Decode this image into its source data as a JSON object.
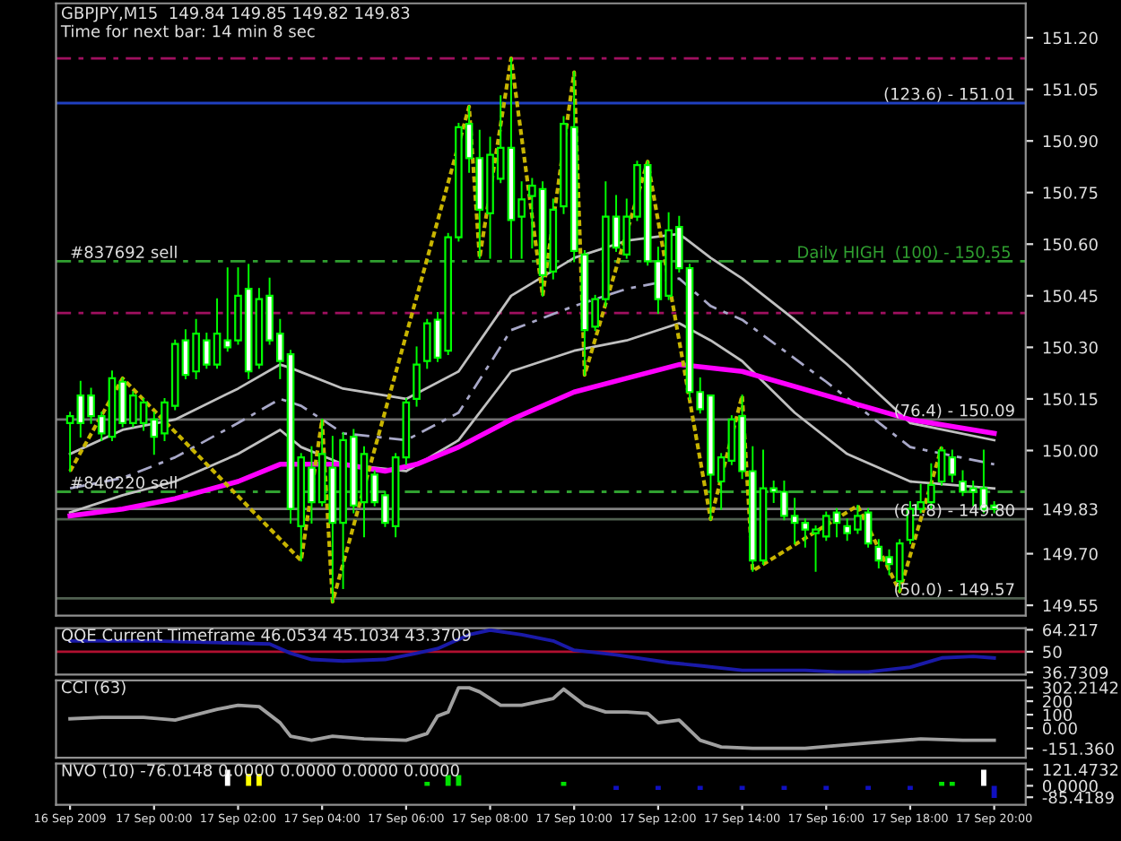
{
  "chart_data": [
    {
      "type": "candlestick",
      "title": "GBPJPY,M15  149.84 149.85 149.82 149.83",
      "subtitle": "Time for next bar: 14 min 8 sec",
      "tick_labels": "y",
      "color": "#00ff00",
      "x": [
        "2009-09-16T22:00",
        "2009-09-16T22:15",
        "2009-09-16T22:30",
        "2009-09-16T22:45",
        "2009-09-16T23:00",
        "2009-09-16T23:15",
        "2009-09-16T23:30",
        "2009-09-16T23:45",
        "2009-09-17T00:00",
        "2009-09-17T00:15",
        "2009-09-17T00:30",
        "2009-09-17T00:45",
        "2009-09-17T01:00",
        "2009-09-17T01:15",
        "2009-09-17T01:30",
        "2009-09-17T01:45",
        "2009-09-17T02:00",
        "2009-09-17T02:15",
        "2009-09-17T02:30",
        "2009-09-17T02:45",
        "2009-09-17T03:00",
        "2009-09-17T03:15",
        "2009-09-17T03:30",
        "2009-09-17T03:45",
        "2009-09-17T04:00",
        "2009-09-17T04:15",
        "2009-09-17T04:30",
        "2009-09-17T04:45",
        "2009-09-17T05:00",
        "2009-09-17T05:15",
        "2009-09-17T05:30",
        "2009-09-17T05:45",
        "2009-09-17T06:00",
        "2009-09-17T06:15",
        "2009-09-17T06:30",
        "2009-09-17T06:45",
        "2009-09-17T07:00",
        "2009-09-17T07:15",
        "2009-09-17T07:30",
        "2009-09-17T07:45",
        "2009-09-17T08:00",
        "2009-09-17T08:15",
        "2009-09-17T08:30",
        "2009-09-17T08:45",
        "2009-09-17T09:00",
        "2009-09-17T09:15",
        "2009-09-17T09:30",
        "2009-09-17T09:45",
        "2009-09-17T10:00",
        "2009-09-17T10:15",
        "2009-09-17T10:30",
        "2009-09-17T10:45",
        "2009-09-17T11:00",
        "2009-09-17T11:15",
        "2009-09-17T11:30",
        "2009-09-17T11:45",
        "2009-09-17T12:00",
        "2009-09-17T12:15",
        "2009-09-17T12:30",
        "2009-09-17T12:45",
        "2009-09-17T13:00",
        "2009-09-17T13:15",
        "2009-09-17T13:30",
        "2009-09-17T13:45",
        "2009-09-17T14:00",
        "2009-09-17T14:15",
        "2009-09-17T14:30",
        "2009-09-17T14:45",
        "2009-09-17T15:00",
        "2009-09-17T15:15",
        "2009-09-17T15:30",
        "2009-09-17T15:45",
        "2009-09-17T16:00",
        "2009-09-17T16:15",
        "2009-09-17T16:30",
        "2009-09-17T16:45",
        "2009-09-17T17:00",
        "2009-09-17T17:15",
        "2009-09-17T17:30",
        "2009-09-17T17:45",
        "2009-09-17T18:00",
        "2009-09-17T18:15",
        "2009-09-17T18:30",
        "2009-09-17T18:45",
        "2009-09-17T19:00",
        "2009-09-17T19:15",
        "2009-09-17T19:30",
        "2009-09-17T19:45",
        "2009-09-17T20:00"
      ],
      "ohlc": [
        [
          150.08,
          150.11,
          149.94,
          150.1
        ],
        [
          150.16,
          150.2,
          150.04,
          150.08
        ],
        [
          150.16,
          150.18,
          150.08,
          150.1
        ],
        [
          150.1,
          150.11,
          150.03,
          150.05
        ],
        [
          150.04,
          150.23,
          150.03,
          150.21
        ],
        [
          150.2,
          150.21,
          150.07,
          150.08
        ],
        [
          150.08,
          150.17,
          150.07,
          150.16
        ],
        [
          150.08,
          150.15,
          150.06,
          150.14
        ],
        [
          150.09,
          150.11,
          149.99,
          150.04
        ],
        [
          150.05,
          150.15,
          150.03,
          150.14
        ],
        [
          150.13,
          150.32,
          150.12,
          150.31
        ],
        [
          150.32,
          150.35,
          150.21,
          150.22
        ],
        [
          150.23,
          150.38,
          150.21,
          150.34
        ],
        [
          150.32,
          150.34,
          150.24,
          150.25
        ],
        [
          150.25,
          150.44,
          150.24,
          150.34
        ],
        [
          150.32,
          150.53,
          150.29,
          150.3
        ],
        [
          150.32,
          150.53,
          150.31,
          150.45
        ],
        [
          150.47,
          150.54,
          150.21,
          150.23
        ],
        [
          150.25,
          150.47,
          150.24,
          150.44
        ],
        [
          150.45,
          150.5,
          150.31,
          150.32
        ],
        [
          150.34,
          150.38,
          150.21,
          150.26
        ],
        [
          150.28,
          150.29,
          149.79,
          149.83
        ],
        [
          149.78,
          149.99,
          149.68,
          149.98
        ],
        [
          149.95,
          150.01,
          149.79,
          149.85
        ],
        [
          149.85,
          150.09,
          149.84,
          149.99
        ],
        [
          149.95,
          150.04,
          149.56,
          149.79
        ],
        [
          149.79,
          150.05,
          149.6,
          150.03
        ],
        [
          150.04,
          150.06,
          149.82,
          149.84
        ],
        [
          149.85,
          150.01,
          149.75,
          149.99
        ],
        [
          149.93,
          149.94,
          149.84,
          149.85
        ],
        [
          149.87,
          149.88,
          149.78,
          149.79
        ],
        [
          149.78,
          149.99,
          149.75,
          149.98
        ],
        [
          149.98,
          150.15,
          149.96,
          150.14
        ],
        [
          150.15,
          150.3,
          150.13,
          150.25
        ],
        [
          150.26,
          150.38,
          150.24,
          150.37
        ],
        [
          150.38,
          150.4,
          150.26,
          150.27
        ],
        [
          150.29,
          150.63,
          150.28,
          150.62
        ],
        [
          150.62,
          150.95,
          150.61,
          150.94
        ],
        [
          150.95,
          151.0,
          150.81,
          150.85
        ],
        [
          150.85,
          150.93,
          150.56,
          150.7
        ],
        [
          150.69,
          150.91,
          150.56,
          150.86
        ],
        [
          150.79,
          151.03,
          150.78,
          150.88
        ],
        [
          150.88,
          151.14,
          150.56,
          150.67
        ],
        [
          150.68,
          150.78,
          150.56,
          150.73
        ],
        [
          150.74,
          150.79,
          150.59,
          150.77
        ],
        [
          150.76,
          150.78,
          150.45,
          150.51
        ],
        [
          150.52,
          150.73,
          150.5,
          150.7
        ],
        [
          150.71,
          150.97,
          150.69,
          150.95
        ],
        [
          150.94,
          151.1,
          150.55,
          150.58
        ],
        [
          150.57,
          150.58,
          150.22,
          150.35
        ],
        [
          150.36,
          150.45,
          150.35,
          150.44
        ],
        [
          150.44,
          150.78,
          150.42,
          150.68
        ],
        [
          150.68,
          150.74,
          150.58,
          150.59
        ],
        [
          150.57,
          150.73,
          150.56,
          150.68
        ],
        [
          150.68,
          150.84,
          150.67,
          150.83
        ],
        [
          150.83,
          150.84,
          150.54,
          150.55
        ],
        [
          150.55,
          150.59,
          150.4,
          150.44
        ],
        [
          150.45,
          150.69,
          150.44,
          150.64
        ],
        [
          150.65,
          150.68,
          150.52,
          150.53
        ],
        [
          150.53,
          150.54,
          150.15,
          150.17
        ],
        [
          150.17,
          150.21,
          150.11,
          150.12
        ],
        [
          150.16,
          150.16,
          149.8,
          149.93
        ],
        [
          149.91,
          149.99,
          149.83,
          149.98
        ],
        [
          149.97,
          150.1,
          149.96,
          150.09
        ],
        [
          150.1,
          150.16,
          149.92,
          149.94
        ],
        [
          149.94,
          150.01,
          149.65,
          149.68
        ],
        [
          149.68,
          150.0,
          149.67,
          149.89
        ],
        [
          149.89,
          149.91,
          149.85,
          149.88
        ],
        [
          149.88,
          149.91,
          149.8,
          149.81
        ],
        [
          149.81,
          149.86,
          149.73,
          149.79
        ],
        [
          149.79,
          149.8,
          149.72,
          149.77
        ],
        [
          149.76,
          149.78,
          149.65,
          149.77
        ],
        [
          149.75,
          149.82,
          149.74,
          149.81
        ],
        [
          149.82,
          149.83,
          149.75,
          149.79
        ],
        [
          149.78,
          149.8,
          149.74,
          149.76
        ],
        [
          149.77,
          149.84,
          149.76,
          149.81
        ],
        [
          149.82,
          149.83,
          149.72,
          149.73
        ],
        [
          149.72,
          149.74,
          149.66,
          149.68
        ],
        [
          149.69,
          149.71,
          149.64,
          149.67
        ],
        [
          149.62,
          149.74,
          149.59,
          149.73
        ],
        [
          149.74,
          149.85,
          149.73,
          149.83
        ],
        [
          149.83,
          149.9,
          149.82,
          149.85
        ],
        [
          149.85,
          149.96,
          149.83,
          149.9
        ],
        [
          149.91,
          150.01,
          149.9,
          150.0
        ],
        [
          149.98,
          150.0,
          149.91,
          149.93
        ],
        [
          149.91,
          149.94,
          149.87,
          149.88
        ],
        [
          149.89,
          149.91,
          149.84,
          149.88
        ],
        [
          149.89,
          150.0,
          149.82,
          149.83
        ],
        [
          149.84,
          149.85,
          149.82,
          149.83
        ]
      ],
      "series": [
        {
          "type": "line",
          "color": "#c0c0c0",
          "line_style": "solid",
          "x": [
            "2009-09-16T22:00",
            "2009-09-16T23:15",
            "2009-09-17T00:30",
            "2009-09-17T02:00",
            "2009-09-17T03:00",
            "2009-09-17T03:15",
            "2009-09-17T04:30",
            "2009-09-17T06:00",
            "2009-09-17T07:15",
            "2009-09-17T08:30",
            "2009-09-17T10:00",
            "2009-09-17T11:15",
            "2009-09-17T12:30",
            "2009-09-17T13:15",
            "2009-09-17T14:00",
            "2009-09-17T15:15",
            "2009-09-17T16:30",
            "2009-09-17T18:00",
            "2009-09-17T20:00"
          ],
          "values": [
            149.99,
            150.06,
            150.09,
            150.18,
            150.25,
            150.24,
            150.18,
            150.15,
            150.23,
            150.45,
            150.56,
            150.61,
            150.63,
            150.56,
            150.5,
            150.38,
            150.25,
            150.08,
            150.03
          ]
        },
        {
          "type": "line",
          "color": "#a8a8c8",
          "line_style": "dashed",
          "x": [
            "2009-09-16T22:00",
            "2009-09-16T23:15",
            "2009-09-17T00:30",
            "2009-09-17T02:00",
            "2009-09-17T03:00",
            "2009-09-17T03:30",
            "2009-09-17T04:30",
            "2009-09-17T06:00",
            "2009-09-17T07:15",
            "2009-09-17T08:30",
            "2009-09-17T10:00",
            "2009-09-17T11:15",
            "2009-09-17T12:30",
            "2009-09-17T13:15",
            "2009-09-17T14:00",
            "2009-09-17T16:00",
            "2009-09-17T18:00",
            "2009-09-17T20:00"
          ],
          "values": [
            149.89,
            149.92,
            149.98,
            150.08,
            150.15,
            150.13,
            150.05,
            150.03,
            150.11,
            150.35,
            150.42,
            150.47,
            150.5,
            150.42,
            150.38,
            150.2,
            150.01,
            149.96
          ]
        },
        {
          "type": "line",
          "color": "#c0c0c0",
          "line_style": "solid",
          "x": [
            "2009-09-16T22:00",
            "2009-09-16T23:15",
            "2009-09-17T00:30",
            "2009-09-17T02:00",
            "2009-09-17T03:00",
            "2009-09-17T03:30",
            "2009-09-17T04:30",
            "2009-09-17T06:00",
            "2009-09-17T07:15",
            "2009-09-17T08:30",
            "2009-09-17T10:00",
            "2009-09-17T11:15",
            "2009-09-17T12:30",
            "2009-09-17T13:15",
            "2009-09-17T14:00",
            "2009-09-17T15:15",
            "2009-09-17T16:30",
            "2009-09-17T18:00",
            "2009-09-17T20:00"
          ],
          "values": [
            149.82,
            149.87,
            149.91,
            149.99,
            150.06,
            150.01,
            149.96,
            149.94,
            150.03,
            150.23,
            150.29,
            150.32,
            150.37,
            150.32,
            150.26,
            150.11,
            149.99,
            149.91,
            149.89
          ]
        },
        {
          "type": "line",
          "color": "#ff00ff",
          "line_style": "solid",
          "x": [
            "2009-09-16T22:00",
            "2009-09-16T23:15",
            "2009-09-17T00:30",
            "2009-09-17T02:00",
            "2009-09-17T03:00",
            "2009-09-17T04:30",
            "2009-09-17T05:30",
            "2009-09-17T06:15",
            "2009-09-17T07:15",
            "2009-09-17T08:30",
            "2009-09-17T10:00",
            "2009-09-17T11:15",
            "2009-09-17T12:30",
            "2009-09-17T14:00",
            "2009-09-17T16:00",
            "2009-09-17T18:00",
            "2009-09-17T20:00"
          ],
          "values": [
            149.81,
            149.83,
            149.86,
            149.91,
            149.96,
            149.96,
            149.94,
            149.96,
            150.01,
            150.09,
            150.17,
            150.21,
            150.25,
            150.23,
            150.16,
            150.09,
            150.05
          ]
        },
        {
          "type": "line",
          "color": "#c8b400",
          "line_style": "dotted",
          "x": [
            "2009-09-16T22:00",
            "2009-09-16T23:15",
            "2009-09-17T03:30",
            "2009-09-17T04:00",
            "2009-09-17T04:15",
            "2009-09-17T07:30",
            "2009-09-17T07:45",
            "2009-09-17T08:30",
            "2009-09-17T09:15",
            "2009-09-17T10:00",
            "2009-09-17T10:15",
            "2009-09-17T11:45",
            "2009-09-17T13:15",
            "2009-09-17T14:00",
            "2009-09-17T14:15",
            "2009-09-17T16:45",
            "2009-09-17T17:45",
            "2009-09-17T18:45"
          ],
          "values": [
            149.94,
            150.21,
            149.68,
            150.09,
            149.56,
            151.0,
            150.56,
            151.14,
            150.45,
            151.1,
            150.22,
            150.84,
            149.8,
            150.16,
            149.65,
            149.84,
            149.59,
            150.01
          ]
        }
      ],
      "ref_lines": [
        {
          "axis": "y",
          "value": 151.14,
          "color": "#a01060",
          "line_style": "dashed"
        },
        {
          "axis": "y",
          "value": 151.01,
          "color": "#2040c0",
          "line_style": "solid"
        },
        {
          "axis": "y",
          "value": 150.55,
          "color": "#30a030",
          "line_style": "dashed",
          "label": "Daily HIGH  (100) - 150.55"
        },
        {
          "axis": "y",
          "value": 150.4,
          "color": "#a01060",
          "line_style": "dashed"
        },
        {
          "axis": "y",
          "value": 150.09,
          "color": "#707070",
          "line_style": "solid"
        },
        {
          "axis": "y",
          "value": 149.88,
          "color": "#30a030",
          "line_style": "dashed"
        },
        {
          "axis": "y",
          "value": 149.83,
          "color": "#808080",
          "line_style": "solid"
        },
        {
          "axis": "y",
          "value": 149.8,
          "color": "#506050",
          "line_style": "solid"
        },
        {
          "axis": "y",
          "value": 149.57,
          "color": "#506050",
          "line_style": "solid"
        }
      ],
      "annotations": [
        {
          "text": "#837692 sell",
          "x": "2009-09-16T22:00",
          "y": 150.55
        },
        {
          "text": "#840220 sell",
          "x": "2009-09-16T22:00",
          "y": 149.88
        },
        {
          "text": "(123.6) - 151.01",
          "x": "2009-09-17T20:30",
          "y": 151.01
        },
        {
          "text": "(76.4) - 150.09",
          "x": "2009-09-17T20:30",
          "y": 150.09
        },
        {
          "text": "(61.8) - 149.80",
          "x": "2009-09-17T20:30",
          "y": 149.8
        },
        {
          "text": "(50.0) - 149.57",
          "x": "2009-09-17T20:30",
          "y": 149.57
        }
      ],
      "xlim": [
        "2009-09-16T21:40",
        "2009-09-17T20:45"
      ],
      "ylim": [
        149.52,
        151.3
      ],
      "yticks": [
        {
          "value": 151.2,
          "label": "151.20"
        },
        151.05,
        {
          "value": 150.9,
          "label": "150.90"
        },
        150.75,
        {
          "value": 150.6,
          "label": "150.60"
        },
        150.45,
        {
          "value": 150.3,
          "label": "150.30"
        },
        150.15,
        {
          "value": 150.0,
          "label": "150.00"
        },
        {
          "value": 149.83,
          "label": "149.83"
        },
        {
          "value": 149.7,
          "label": "149.70"
        },
        149.55
      ]
    },
    {
      "type": "line",
      "title": "QQE Current Timeframe 46.0534 45.1034 43.3709",
      "tick_labels": "y",
      "color": "#1a1aa8",
      "x": [
        "2009-09-16T22:00",
        "2009-09-17T00:00",
        "2009-09-17T02:45",
        "2009-09-17T03:15",
        "2009-09-17T03:45",
        "2009-09-17T04:30",
        "2009-09-17T05:30",
        "2009-09-17T06:15",
        "2009-09-17T06:45",
        "2009-09-17T07:30",
        "2009-09-17T08:00",
        "2009-09-17T08:45",
        "2009-09-17T09:30",
        "2009-09-17T10:00",
        "2009-09-17T11:00",
        "2009-09-17T12:15",
        "2009-09-17T13:00",
        "2009-09-17T14:00",
        "2009-09-17T14:45",
        "2009-09-17T15:30",
        "2009-09-17T16:15",
        "2009-09-17T17:00",
        "2009-09-17T18:00",
        "2009-09-17T18:45",
        "2009-09-17T19:30",
        "2009-09-17T20:00"
      ],
      "values": [
        57,
        57,
        55,
        49,
        45,
        44,
        45,
        49,
        52,
        61,
        64,
        61,
        57,
        51,
        48,
        43,
        41,
        38,
        38,
        38,
        37,
        37,
        40,
        46,
        47,
        46
      ],
      "ref_lines": [
        {
          "axis": "y",
          "value": 50,
          "color": "#b01030",
          "line_style": "solid"
        }
      ],
      "xlim": [
        "2009-09-16T21:40",
        "2009-09-17T20:45"
      ],
      "ylim": [
        35.3,
        65.2
      ],
      "yticks": [
        64.217,
        50,
        36.7309
      ]
    },
    {
      "type": "line",
      "title": "CCI (63)",
      "tick_labels": "y",
      "color": "#a0a0a0",
      "x": [
        "2009-09-16T22:00",
        "2009-09-16T22:45",
        "2009-09-16T23:45",
        "2009-09-17T00:30",
        "2009-09-17T01:30",
        "2009-09-17T02:00",
        "2009-09-17T02:30",
        "2009-09-17T03:00",
        "2009-09-17T03:15",
        "2009-09-17T03:45",
        "2009-09-17T04:15",
        "2009-09-17T05:00",
        "2009-09-17T06:00",
        "2009-09-17T06:30",
        "2009-09-17T06:45",
        "2009-09-17T07:00",
        "2009-09-17T07:15",
        "2009-09-17T07:30",
        "2009-09-17T07:45",
        "2009-09-17T08:15",
        "2009-09-17T08:45",
        "2009-09-17T09:30",
        "2009-09-17T09:45",
        "2009-09-17T10:15",
        "2009-09-17T10:45",
        "2009-09-17T11:15",
        "2009-09-17T11:45",
        "2009-09-17T12:00",
        "2009-09-17T12:30",
        "2009-09-17T13:00",
        "2009-09-17T13:30",
        "2009-09-17T14:15",
        "2009-09-17T15:30",
        "2009-09-17T17:00",
        "2009-09-17T18:15",
        "2009-09-17T19:15",
        "2009-09-17T20:00"
      ],
      "values": [
        70,
        80,
        80,
        60,
        140,
        170,
        160,
        40,
        -60,
        -90,
        -60,
        -80,
        -90,
        -40,
        90,
        120,
        300,
        300,
        270,
        170,
        170,
        220,
        290,
        170,
        120,
        120,
        110,
        40,
        60,
        -90,
        -140,
        -150,
        -150,
        -110,
        -80,
        -90,
        -90
      ],
      "xlim": [
        "2009-09-16T21:40",
        "2009-09-17T20:45"
      ],
      "ylim": [
        -220,
        355
      ],
      "yticks": [
        302.2142,
        200,
        100,
        {
          "value": 0,
          "label": "0.00"
        },
        {
          "value": -151.36,
          "label": "-151.360"
        }
      ]
    },
    {
      "type": "bar",
      "title": "NVO (10) -76.0148 0.0000 0.0000 0.0000 0.0000",
      "x": [
        "2009-09-17T01:45",
        "2009-09-17T02:15",
        "2009-09-17T02:30",
        "2009-09-17T06:30",
        "2009-09-17T07:00",
        "2009-09-17T07:15",
        "2009-09-17T09:45",
        "2009-09-17T11:00",
        "2009-09-17T12:00",
        "2009-09-17T13:00",
        "2009-09-17T14:00",
        "2009-09-17T15:00",
        "2009-09-17T16:00",
        "2009-09-17T17:00",
        "2009-09-17T18:00",
        "2009-09-17T18:45",
        "2009-09-17T19:00",
        "2009-09-17T19:45",
        "2009-09-17T20:00"
      ],
      "values": [
        120,
        90,
        90,
        30,
        80,
        80,
        30,
        -30,
        -30,
        -30,
        -30,
        -30,
        -30,
        -30,
        -30,
        30,
        30,
        120,
        -90
      ],
      "colors": [
        "#ffffff",
        "#ffff00",
        "#ffff00",
        "#00e000",
        "#00e000",
        "#00e000",
        "#00e000",
        "#1010c0",
        "#1010c0",
        "#1010c0",
        "#1010c0",
        "#1010c0",
        "#1010c0",
        "#1010c0",
        "#1010c0",
        "#00e000",
        "#00e000",
        "#ffffff",
        "#1010c0"
      ],
      "xlim": [
        "2009-09-16T21:40",
        "2009-09-17T20:45"
      ],
      "ylim": [
        -142,
        165
      ],
      "yticks": [
        121.4732,
        {
          "value": 0,
          "label": "0.0000"
        },
        -85.4189
      ],
      "xticks": [
        {
          "value": "2009-09-16T22:00",
          "label": "16 Sep 2009"
        },
        {
          "value": "2009-09-17T00:00",
          "label": "17 Sep 00:00"
        },
        {
          "value": "2009-09-17T02:00",
          "label": "17 Sep 02:00"
        },
        {
          "value": "2009-09-17T04:00",
          "label": "17 Sep 04:00"
        },
        {
          "value": "2009-09-17T06:00",
          "label": "17 Sep 06:00"
        },
        {
          "value": "2009-09-17T08:00",
          "label": "17 Sep 08:00"
        },
        {
          "value": "2009-09-17T10:00",
          "label": "17 Sep 10:00"
        },
        {
          "value": "2009-09-17T12:00",
          "label": "17 Sep 12:00"
        },
        {
          "value": "2009-09-17T14:00",
          "label": "17 Sep 14:00"
        },
        {
          "value": "2009-09-17T16:00",
          "label": "17 Sep 16:00"
        },
        {
          "value": "2009-09-17T18:00",
          "label": "17 Sep 18:00"
        },
        {
          "value": "2009-09-17T20:00",
          "label": "17 Sep 20:00"
        }
      ]
    }
  ]
}
